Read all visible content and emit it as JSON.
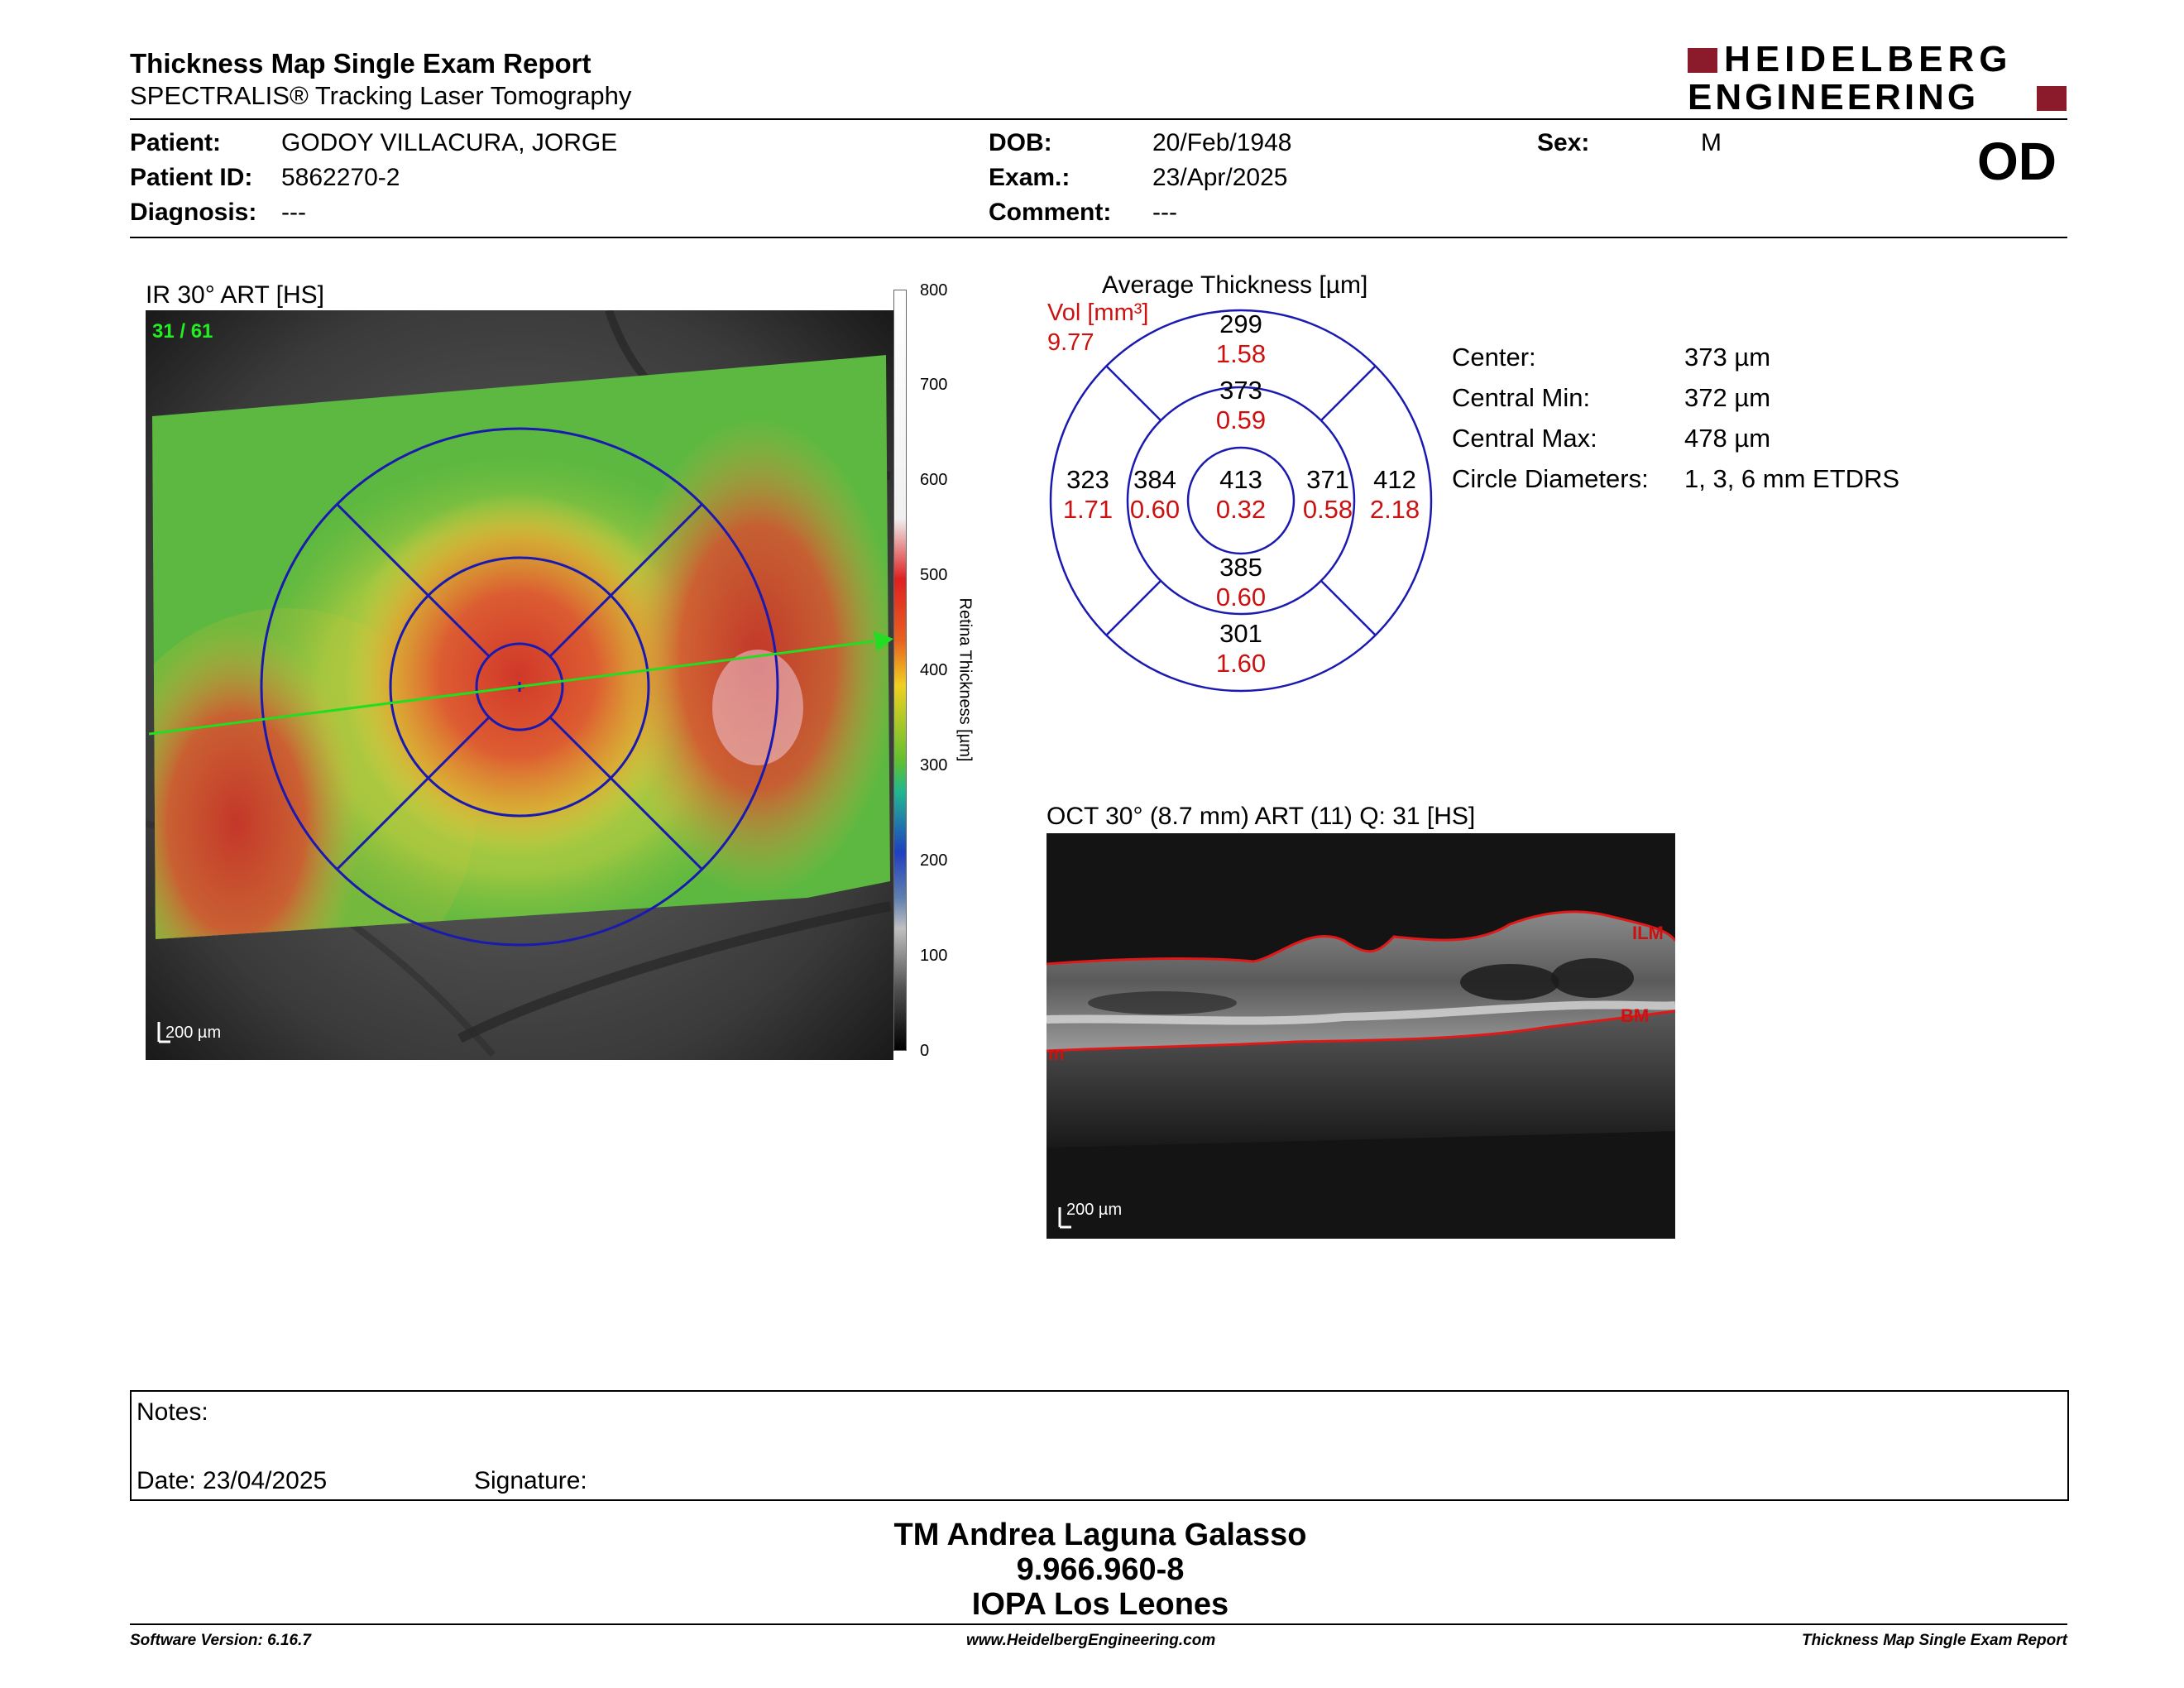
{
  "header": {
    "title": "Thickness Map Single Exam Report",
    "subtitle": "SPECTRALIS® Tracking Laser Tomography",
    "logo_line1": "HEIDELBERG",
    "logo_line2": "ENGINEERING",
    "eye": "OD"
  },
  "patient": {
    "patient_label": "Patient:",
    "patient_value": "GODOY  VILLACURA, JORGE",
    "id_label": "Patient ID:",
    "id_value": "5862270-2",
    "diagnosis_label": "Diagnosis:",
    "diagnosis_value": "---",
    "dob_label": "DOB:",
    "dob_value": "20/Feb/1948",
    "exam_label": "Exam.:",
    "exam_value": "23/Apr/2025",
    "comment_label": "Comment:",
    "comment_value": "---",
    "sex_label": "Sex:",
    "sex_value": "M"
  },
  "ir_image": {
    "title": "IR 30° ART [HS]",
    "frame_counter": "31 / 61",
    "scale_label": "200 µm",
    "colorbar_ticks": [
      "800",
      "700",
      "600",
      "500",
      "400",
      "300",
      "200",
      "100",
      "0"
    ],
    "colorbar_label": "Retina  Thickness [µm]"
  },
  "etdrs": {
    "title": "Average Thickness [µm]",
    "vol_label": "Vol [mm³]",
    "vol_value": "9.77",
    "outer_top": {
      "t": "299",
      "v": "1.58"
    },
    "inner_top": {
      "t": "373",
      "v": "0.59"
    },
    "outer_left": {
      "t": "323",
      "v": "1.71"
    },
    "inner_left": {
      "t": "384",
      "v": "0.60"
    },
    "center": {
      "t": "413",
      "v": "0.32"
    },
    "inner_right": {
      "t": "371",
      "v": "0.58"
    },
    "outer_right": {
      "t": "412",
      "v": "2.18"
    },
    "inner_bottom": {
      "t": "385",
      "v": "0.60"
    },
    "outer_bottom": {
      "t": "301",
      "v": "1.60"
    }
  },
  "stats": [
    {
      "label": "Center:",
      "value": "373 µm"
    },
    {
      "label": "Central Min:",
      "value": "372 µm"
    },
    {
      "label": "Central Max:",
      "value": "478 µm"
    },
    {
      "label": "Circle Diameters:",
      "value": "1, 3, 6 mm ETDRS"
    }
  ],
  "oct": {
    "title": "OCT 30° (8.7 mm) ART (11) Q: 31 [HS]",
    "ilm_label": "ILM",
    "bm_label": "BM",
    "scale_label": "200 µm",
    "edge_mark": "m"
  },
  "notes": {
    "notes_label": "Notes:",
    "date_label": "Date: 23/04/2025",
    "signature_label": "Signature:"
  },
  "signer": {
    "name": "TM Andrea Laguna Galasso",
    "id": "9.966.960-8",
    "place": "IOPA Los Leones"
  },
  "footer": {
    "version": "Software Version: 6.16.7",
    "website": "www.HeidelbergEngineering.com",
    "report": "Thickness Map Single Exam Report"
  },
  "colors": {
    "etdrs_grid": "#1a1ab0",
    "volume_text": "#cc1111",
    "logo_red": "#8b1a2b",
    "scan_arrow": "#22dd22"
  }
}
